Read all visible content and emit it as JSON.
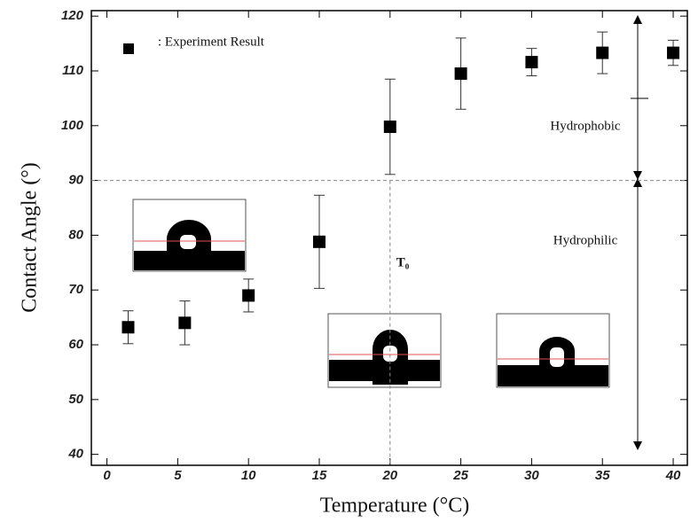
{
  "chart_data": {
    "type": "scatter",
    "x_label": "Temperature (°C)",
    "y_label": "Contact Angle (°)",
    "series": [
      {
        "name": ": Experiment Result",
        "color": "#000000",
        "x": [
          1.5,
          5.5,
          10,
          15,
          20,
          25,
          30,
          35,
          40
        ],
        "values": [
          63.2,
          64,
          69,
          78.8,
          99.8,
          109.5,
          111.6,
          113.3,
          113.3
        ],
        "errors": [
          3,
          4,
          3,
          8.5,
          8.7,
          6.5,
          2.5,
          3.8,
          2.3
        ]
      }
    ],
    "xlim": [
      -1.1,
      41
    ],
    "xticks": [
      0,
      5,
      10,
      15,
      20,
      25,
      30,
      35,
      40
    ],
    "ylim": [
      38,
      121
    ],
    "yticks": [
      40,
      50,
      60,
      70,
      80,
      90,
      100,
      110,
      120
    ],
    "reference_lines": {
      "y": 90,
      "x": 20
    },
    "annotations": [
      "Hydrophobic",
      "Hydrophilic",
      "T₀"
    ]
  }
}
